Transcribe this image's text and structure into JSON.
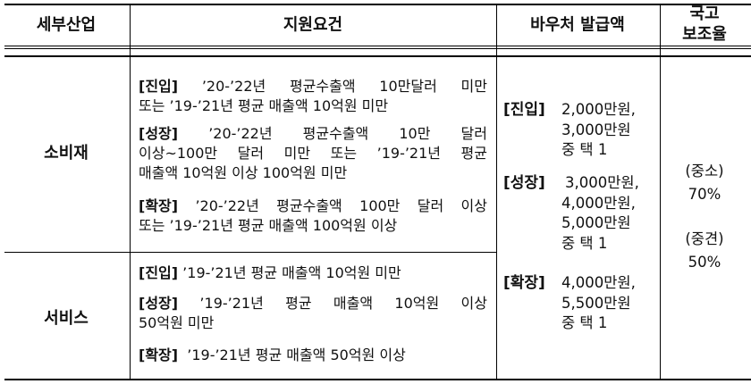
{
  "header": {
    "col1": "세부산업",
    "col2": "지원요건",
    "col3": "바우처 발급액",
    "col4_line1": "국고",
    "col4_line2": "보조율"
  },
  "rows": [
    {
      "category": "소비재",
      "requirements": [
        {
          "tag": "[진입]",
          "lines": [
            "’20-’22년 평균수출액 10만달러 미만",
            "또는 ’19-’21년 평균 매출액 10억원 미만"
          ]
        },
        {
          "tag": "[성장]",
          "lines": [
            "’20-’22년 평균수출액 10만 달러",
            "이상~100만 달러 미만 또는 ’19-’21년 평균",
            "매출액 10억원 이상 100억원 미만"
          ]
        },
        {
          "tag": "[확장]",
          "lines": [
            "’20-’22년 평균수출액 100만 달러 이상",
            "또는 ’19-’21년 평균 매출액 100억원 이상"
          ]
        }
      ]
    },
    {
      "category": "서비스",
      "requirements": [
        {
          "tag": "[진입]",
          "lines": [
            "’19-’21년 평균 매출액 10억원 미만"
          ]
        },
        {
          "tag": "[성장]",
          "lines": [
            "’19-’21년 평균 매출액 10억원 이상",
            "50억원 미만"
          ]
        },
        {
          "tag": "[확장]",
          "lines": [
            "’19-’21년 평균 매출액 50억원 이상"
          ]
        }
      ]
    }
  ],
  "vouchers": [
    {
      "tag": "[진입]",
      "lines": [
        "2,000만원,",
        "3,000만원",
        "중 택 1"
      ]
    },
    {
      "tag": "[성장]",
      "lines": [
        "3,000만원,",
        "4,000만원,",
        "5,000만원",
        "중 택 1"
      ]
    },
    {
      "tag": "[확장]",
      "lines": [
        "4,000만원,",
        "5,500만원",
        "중 택 1"
      ]
    }
  ],
  "subsidy": [
    {
      "label": "(중소)",
      "rate": "70%"
    },
    {
      "label": "(중견)",
      "rate": "50%"
    }
  ]
}
